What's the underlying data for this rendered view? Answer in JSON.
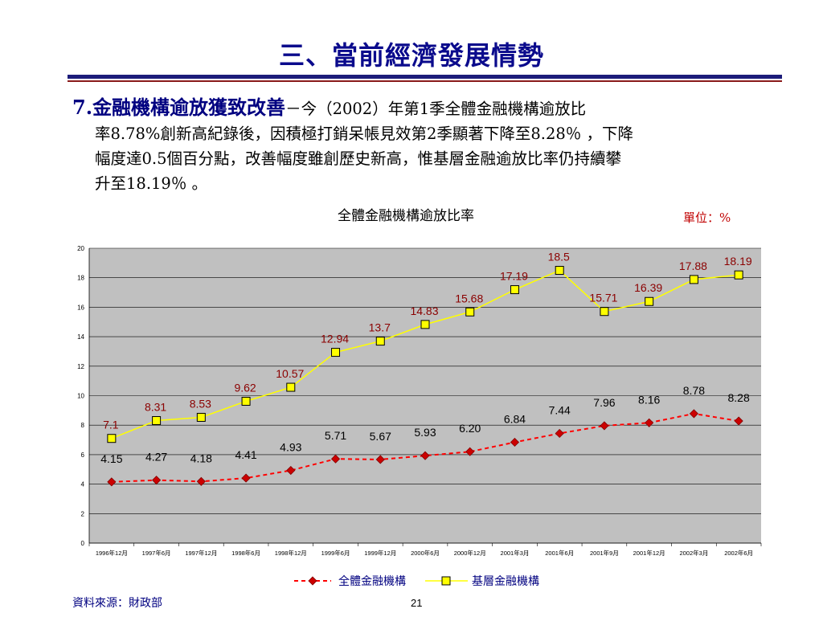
{
  "title": "三、當前經濟發展情勢",
  "paragraph": {
    "number": "7.",
    "heading": "金融機構逾放獲致改善",
    "dash": "－",
    "line1": "今（2002）年第1季全體金融機構逾放比",
    "line2": "率8.78%創新高紀錄後，因積極打銷呆帳見效第2季顯著下降至8.28％ ，下降",
    "line3": "幅度達0.5個百分點，改善幅度雖創歷史新高，惟基層金融逾放比率仍持續攀",
    "line4": "升至18.19％ 。"
  },
  "chart_title": "全體金融機構逾放比率",
  "unit": "單位：%",
  "source": "資料來源：財政部",
  "page_number": "21",
  "colors": {
    "title": "#0a0a8c",
    "plot_bg": "#c0c0c0",
    "series1_line": "#ff0000",
    "series1_marker": "#cc0000",
    "series2_line": "#ffff00",
    "series2_marker": "#ffff00",
    "series2_label": "#8b0000",
    "series1_label": "#000000"
  },
  "chart_data": {
    "type": "line",
    "categories": [
      "1996年12月",
      "1997年6月",
      "1997年12月",
      "1998年6月",
      "1998年12月",
      "1999年6月",
      "1999年12月",
      "2000年6月",
      "2000年12月",
      "2001年3月",
      "2001年6月",
      "2001年9月",
      "2001年12月",
      "2002年3月",
      "2002年6月"
    ],
    "series": [
      {
        "name": "全體金融機構",
        "values": [
          4.15,
          4.27,
          4.18,
          4.41,
          4.93,
          5.71,
          5.67,
          5.93,
          6.2,
          6.84,
          7.44,
          7.96,
          8.16,
          8.78,
          8.28
        ],
        "labels": [
          "4.15",
          "4.27",
          "4.18",
          "4.41",
          "4.93",
          "5.71",
          "5.67",
          "5.93",
          "6.20",
          "6.84",
          "7.44",
          "7.96",
          "8.16",
          "8.78",
          "8.28"
        ],
        "style": "dashed",
        "marker": "diamond"
      },
      {
        "name": "基層金融機構",
        "values": [
          7.1,
          8.31,
          8.53,
          9.62,
          10.57,
          12.94,
          13.7,
          14.83,
          15.68,
          17.19,
          18.5,
          15.71,
          16.39,
          17.88,
          18.19
        ],
        "labels": [
          "7.1",
          "8.31",
          "8.53",
          "9.62",
          "10.57",
          "12.94",
          "13.7",
          "14.83",
          "15.68",
          "17.19",
          "18.5",
          "15.71",
          "16.39",
          "17.88",
          "18.19"
        ],
        "style": "solid",
        "marker": "square"
      }
    ],
    "yticks": [
      "0",
      "2",
      "4",
      "6",
      "8",
      "10",
      "12",
      "14",
      "16",
      "18",
      "20"
    ],
    "ylim": [
      0,
      20
    ],
    "grid": true,
    "legend": "bottom"
  }
}
